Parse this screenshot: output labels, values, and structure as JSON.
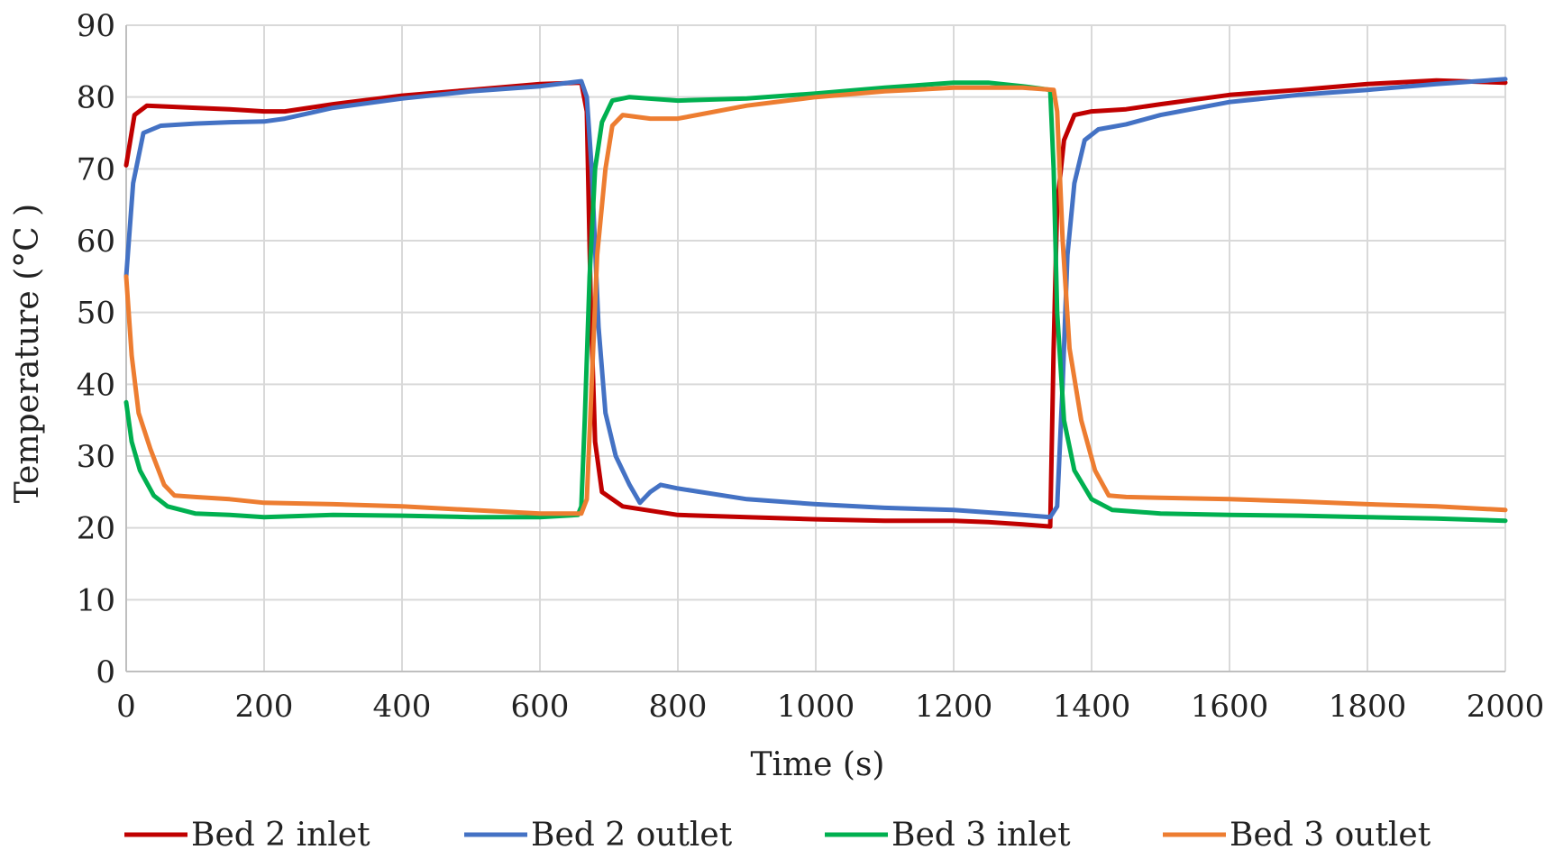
{
  "chart_data": {
    "type": "line",
    "title": "",
    "xlabel": "Time (s)",
    "ylabel": "Temperature  (°C )",
    "xlim": [
      0,
      2000
    ],
    "ylim": [
      0,
      90
    ],
    "xticks": [
      0,
      200,
      400,
      600,
      800,
      1000,
      1200,
      1400,
      1600,
      1800,
      2000
    ],
    "yticks": [
      0,
      10,
      20,
      30,
      40,
      50,
      60,
      70,
      80,
      90
    ],
    "xtick_labels": [
      "0",
      "200",
      "400",
      "600",
      "800",
      "1000",
      "1200",
      "1400",
      "1600",
      "1800",
      "2000"
    ],
    "ytick_labels": [
      "0",
      "10",
      "20",
      "30",
      "40",
      "50",
      "60",
      "70",
      "80",
      "90"
    ],
    "grid": true,
    "legend_position": "bottom",
    "series": [
      {
        "name": "Bed 2 inlet",
        "color": "#C00000",
        "points": [
          [
            0,
            70.5
          ],
          [
            12,
            77.5
          ],
          [
            30,
            78.8
          ],
          [
            100,
            78.5
          ],
          [
            150,
            78.3
          ],
          [
            200,
            78.0
          ],
          [
            230,
            78.0
          ],
          [
            300,
            79.0
          ],
          [
            400,
            80.2
          ],
          [
            500,
            81.0
          ],
          [
            600,
            81.8
          ],
          [
            660,
            82.0
          ],
          [
            668,
            78.0
          ],
          [
            674,
            50.0
          ],
          [
            680,
            32.0
          ],
          [
            690,
            25.0
          ],
          [
            720,
            23.0
          ],
          [
            800,
            21.8
          ],
          [
            900,
            21.5
          ],
          [
            1000,
            21.2
          ],
          [
            1100,
            21.0
          ],
          [
            1200,
            21.0
          ],
          [
            1250,
            20.8
          ],
          [
            1300,
            20.5
          ],
          [
            1340,
            20.2
          ],
          [
            1345,
            45.0
          ],
          [
            1350,
            65.0
          ],
          [
            1360,
            74.0
          ],
          [
            1375,
            77.5
          ],
          [
            1400,
            78.0
          ],
          [
            1450,
            78.3
          ],
          [
            1500,
            79.0
          ],
          [
            1600,
            80.3
          ],
          [
            1700,
            81.0
          ],
          [
            1800,
            81.8
          ],
          [
            1900,
            82.3
          ],
          [
            2000,
            82.0
          ]
        ]
      },
      {
        "name": "Bed 2 outlet",
        "color": "#4472C4",
        "points": [
          [
            0,
            55.0
          ],
          [
            10,
            68.0
          ],
          [
            25,
            75.0
          ],
          [
            50,
            76.0
          ],
          [
            100,
            76.3
          ],
          [
            150,
            76.5
          ],
          [
            200,
            76.6
          ],
          [
            230,
            77.0
          ],
          [
            300,
            78.5
          ],
          [
            400,
            79.8
          ],
          [
            500,
            80.8
          ],
          [
            600,
            81.5
          ],
          [
            660,
            82.2
          ],
          [
            668,
            80.0
          ],
          [
            675,
            70.0
          ],
          [
            685,
            48.0
          ],
          [
            695,
            36.0
          ],
          [
            710,
            30.0
          ],
          [
            730,
            26.0
          ],
          [
            745,
            23.5
          ],
          [
            760,
            25.0
          ],
          [
            775,
            26.0
          ],
          [
            800,
            25.5
          ],
          [
            900,
            24.0
          ],
          [
            1000,
            23.3
          ],
          [
            1100,
            22.8
          ],
          [
            1200,
            22.5
          ],
          [
            1300,
            21.8
          ],
          [
            1340,
            21.5
          ],
          [
            1350,
            23.0
          ],
          [
            1358,
            40.0
          ],
          [
            1365,
            58.0
          ],
          [
            1375,
            68.0
          ],
          [
            1390,
            74.0
          ],
          [
            1410,
            75.5
          ],
          [
            1450,
            76.2
          ],
          [
            1500,
            77.5
          ],
          [
            1600,
            79.3
          ],
          [
            1700,
            80.3
          ],
          [
            1800,
            81.0
          ],
          [
            1900,
            81.8
          ],
          [
            2000,
            82.5
          ]
        ]
      },
      {
        "name": "Bed 3 inlet",
        "color": "#00B050",
        "points": [
          [
            0,
            37.5
          ],
          [
            8,
            32.0
          ],
          [
            20,
            28.0
          ],
          [
            40,
            24.5
          ],
          [
            60,
            23.0
          ],
          [
            100,
            22.0
          ],
          [
            150,
            21.8
          ],
          [
            200,
            21.5
          ],
          [
            300,
            21.8
          ],
          [
            400,
            21.7
          ],
          [
            500,
            21.5
          ],
          [
            600,
            21.5
          ],
          [
            655,
            21.8
          ],
          [
            660,
            23.0
          ],
          [
            665,
            35.0
          ],
          [
            672,
            55.0
          ],
          [
            680,
            70.0
          ],
          [
            690,
            76.5
          ],
          [
            705,
            79.5
          ],
          [
            730,
            80.0
          ],
          [
            800,
            79.5
          ],
          [
            900,
            79.8
          ],
          [
            1000,
            80.5
          ],
          [
            1100,
            81.3
          ],
          [
            1200,
            82.0
          ],
          [
            1250,
            82.0
          ],
          [
            1300,
            81.5
          ],
          [
            1340,
            81.0
          ],
          [
            1345,
            70.0
          ],
          [
            1350,
            50.0
          ],
          [
            1360,
            35.0
          ],
          [
            1375,
            28.0
          ],
          [
            1400,
            24.0
          ],
          [
            1430,
            22.5
          ],
          [
            1500,
            22.0
          ],
          [
            1600,
            21.8
          ],
          [
            1700,
            21.7
          ],
          [
            1800,
            21.5
          ],
          [
            1900,
            21.3
          ],
          [
            2000,
            21.0
          ]
        ]
      },
      {
        "name": "Bed 3 outlet",
        "color": "#ED7D31",
        "points": [
          [
            0,
            55.0
          ],
          [
            8,
            44.0
          ],
          [
            18,
            36.0
          ],
          [
            35,
            31.0
          ],
          [
            55,
            26.0
          ],
          [
            70,
            24.5
          ],
          [
            100,
            24.3
          ],
          [
            150,
            24.0
          ],
          [
            200,
            23.5
          ],
          [
            300,
            23.3
          ],
          [
            400,
            23.0
          ],
          [
            500,
            22.5
          ],
          [
            600,
            22.0
          ],
          [
            660,
            22.0
          ],
          [
            668,
            24.0
          ],
          [
            675,
            40.0
          ],
          [
            683,
            58.0
          ],
          [
            695,
            70.0
          ],
          [
            705,
            76.0
          ],
          [
            720,
            77.5
          ],
          [
            760,
            77.0
          ],
          [
            800,
            77.0
          ],
          [
            900,
            78.8
          ],
          [
            1000,
            80.0
          ],
          [
            1100,
            80.8
          ],
          [
            1200,
            81.3
          ],
          [
            1300,
            81.3
          ],
          [
            1345,
            81.0
          ],
          [
            1350,
            78.0
          ],
          [
            1358,
            60.0
          ],
          [
            1368,
            45.0
          ],
          [
            1385,
            35.0
          ],
          [
            1405,
            28.0
          ],
          [
            1425,
            24.5
          ],
          [
            1450,
            24.3
          ],
          [
            1500,
            24.2
          ],
          [
            1600,
            24.0
          ],
          [
            1700,
            23.7
          ],
          [
            1800,
            23.3
          ],
          [
            1900,
            23.0
          ],
          [
            2000,
            22.5
          ]
        ]
      }
    ]
  }
}
